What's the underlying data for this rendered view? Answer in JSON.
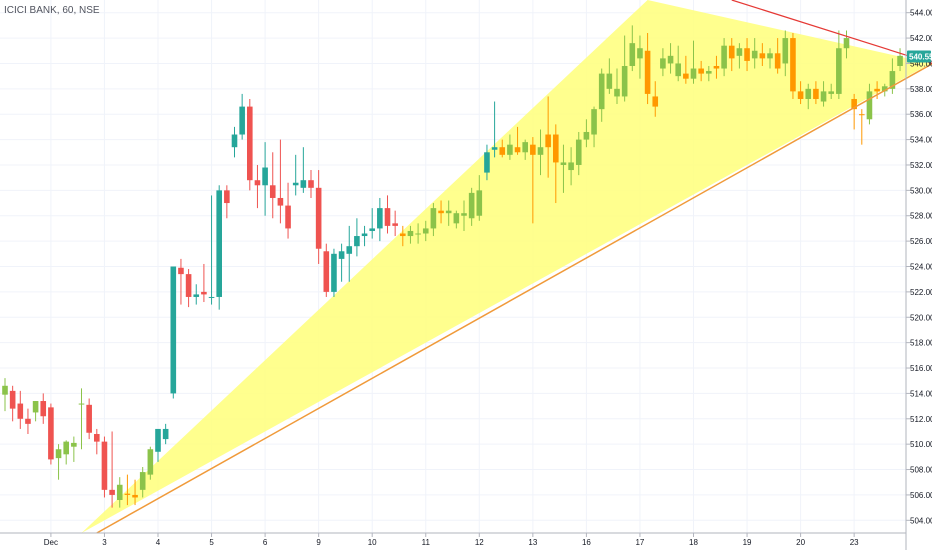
{
  "header": {
    "title": "ICICI BANK, 60, NSE"
  },
  "colors": {
    "up_green": "#8bc34a",
    "up_teal": "#26a69a",
    "down_red": "#ef5350",
    "down_orange": "#ff9800",
    "triangle_fill": "#ffff7a",
    "support_line": "#f09a3a",
    "resistance_line": "#e53935",
    "grid": "#f0f3fa",
    "axis_border": "#b2b5be",
    "price_tag_bg": "#26a69a"
  },
  "chart_data": {
    "type": "candlestick",
    "title": "ICICI BANK, 60, NSE",
    "y_axis": {
      "position": "right",
      "range": [
        503,
        545
      ],
      "ticks": [
        "504.00",
        "506.00",
        "508.00",
        "510.00",
        "512.00",
        "514.00",
        "516.00",
        "518.00",
        "520.00",
        "522.00",
        "524.00",
        "526.00",
        "528.00",
        "530.00",
        "532.00",
        "534.00",
        "536.00",
        "538.00",
        "540.00",
        "542.00",
        "544.00"
      ]
    },
    "x_axis": {
      "ticks": [
        {
          "label": "Dec",
          "bar": 6
        },
        {
          "label": "3",
          "bar": 13
        },
        {
          "label": "4",
          "bar": 20
        },
        {
          "label": "5",
          "bar": 27
        },
        {
          "label": "6",
          "bar": 34
        },
        {
          "label": "9",
          "bar": 41
        },
        {
          "label": "10",
          "bar": 48
        },
        {
          "label": "11",
          "bar": 55
        },
        {
          "label": "12",
          "bar": 62
        },
        {
          "label": "13",
          "bar": 69
        },
        {
          "label": "16",
          "bar": 76
        },
        {
          "label": "17",
          "bar": 83
        },
        {
          "label": "18",
          "bar": 90
        },
        {
          "label": "19",
          "bar": 97
        },
        {
          "label": "20",
          "bar": 104
        },
        {
          "label": "23",
          "bar": 111
        }
      ]
    },
    "last_price": {
      "label": "540.55",
      "value": 540.55
    },
    "grid": true,
    "candles": [
      {
        "o": 513.9,
        "h": 515.2,
        "l": 512.6,
        "c": 514.6,
        "k": "up"
      },
      {
        "o": 514.2,
        "h": 514.6,
        "l": 511.8,
        "c": 512.8,
        "k": "down"
      },
      {
        "o": 513.2,
        "h": 514.2,
        "l": 511.2,
        "c": 512.0,
        "k": "down"
      },
      {
        "o": 512.0,
        "h": 512.8,
        "l": 510.8,
        "c": 511.6,
        "k": "down"
      },
      {
        "o": 512.5,
        "h": 513.4,
        "l": 511.8,
        "c": 513.4,
        "k": "up"
      },
      {
        "o": 513.4,
        "h": 514.0,
        "l": 511.6,
        "c": 512.2,
        "k": "down"
      },
      {
        "o": 512.9,
        "h": 513.2,
        "l": 508.4,
        "c": 508.8,
        "k": "down"
      },
      {
        "o": 508.9,
        "h": 510.0,
        "l": 507.2,
        "c": 509.6,
        "k": "up"
      },
      {
        "o": 509.2,
        "h": 510.3,
        "l": 508.4,
        "c": 510.2,
        "k": "up"
      },
      {
        "o": 509.8,
        "h": 510.6,
        "l": 508.6,
        "c": 510.1,
        "k": "up"
      },
      {
        "o": 513.2,
        "h": 514.4,
        "l": 509.6,
        "c": 513.2,
        "k": "up"
      },
      {
        "o": 513.1,
        "h": 513.6,
        "l": 510.4,
        "c": 510.9,
        "k": "down"
      },
      {
        "o": 510.8,
        "h": 511.2,
        "l": 509.2,
        "c": 510.2,
        "k": "down"
      },
      {
        "o": 510.2,
        "h": 510.6,
        "l": 505.8,
        "c": 506.4,
        "k": "down"
      },
      {
        "o": 506.4,
        "h": 511.0,
        "l": 505.0,
        "c": 506.0,
        "k": "down"
      },
      {
        "o": 505.6,
        "h": 507.4,
        "l": 505.0,
        "c": 506.8,
        "k": "up"
      },
      {
        "o": 506.1,
        "h": 507.6,
        "l": 505.2,
        "c": 506.0,
        "k": "orange"
      },
      {
        "o": 506.0,
        "h": 507.2,
        "l": 505.2,
        "c": 505.8,
        "k": "orange"
      },
      {
        "o": 506.4,
        "h": 508.2,
        "l": 505.8,
        "c": 507.8,
        "k": "up"
      },
      {
        "o": 507.6,
        "h": 509.8,
        "l": 507.2,
        "c": 509.6,
        "k": "up"
      },
      {
        "o": 509.4,
        "h": 511.2,
        "l": 508.6,
        "c": 511.2,
        "k": "up_teal"
      },
      {
        "o": 510.4,
        "h": 511.6,
        "l": 510.0,
        "c": 511.2,
        "k": "up_teal"
      },
      {
        "o": 514.0,
        "h": 524.0,
        "l": 513.6,
        "c": 524.0,
        "k": "up_teal"
      },
      {
        "o": 523.9,
        "h": 524.6,
        "l": 521.0,
        "c": 523.4,
        "k": "down"
      },
      {
        "o": 523.4,
        "h": 523.8,
        "l": 520.8,
        "c": 521.6,
        "k": "down"
      },
      {
        "o": 521.6,
        "h": 522.6,
        "l": 521.0,
        "c": 521.8,
        "k": "up_teal"
      },
      {
        "o": 521.8,
        "h": 524.2,
        "l": 521.2,
        "c": 522.0,
        "k": "down"
      },
      {
        "o": 521.6,
        "h": 529.6,
        "l": 521.0,
        "c": 521.6,
        "k": "up_teal"
      },
      {
        "o": 521.6,
        "h": 530.4,
        "l": 520.6,
        "c": 530.0,
        "k": "up_teal"
      },
      {
        "o": 530.0,
        "h": 530.4,
        "l": 527.8,
        "c": 529.0,
        "k": "down"
      },
      {
        "o": 533.4,
        "h": 535.0,
        "l": 532.6,
        "c": 534.4,
        "k": "up_teal"
      },
      {
        "o": 534.4,
        "h": 537.6,
        "l": 534.0,
        "c": 536.6,
        "k": "up_teal"
      },
      {
        "o": 536.6,
        "h": 537.2,
        "l": 530.0,
        "c": 530.8,
        "k": "down"
      },
      {
        "o": 530.8,
        "h": 532.0,
        "l": 528.6,
        "c": 530.4,
        "k": "down"
      },
      {
        "o": 530.4,
        "h": 533.8,
        "l": 528.0,
        "c": 531.8,
        "k": "up_teal"
      },
      {
        "o": 530.4,
        "h": 533.0,
        "l": 527.8,
        "c": 529.4,
        "k": "down"
      },
      {
        "o": 529.4,
        "h": 534.0,
        "l": 527.4,
        "c": 528.8,
        "k": "down"
      },
      {
        "o": 528.8,
        "h": 530.6,
        "l": 526.2,
        "c": 527.0,
        "k": "down"
      },
      {
        "o": 530.4,
        "h": 532.8,
        "l": 529.6,
        "c": 530.6,
        "k": "up_teal"
      },
      {
        "o": 530.8,
        "h": 533.4,
        "l": 529.8,
        "c": 530.2,
        "k": "up_teal"
      },
      {
        "o": 530.8,
        "h": 531.6,
        "l": 529.4,
        "c": 530.2,
        "k": "down"
      },
      {
        "o": 530.2,
        "h": 531.6,
        "l": 524.2,
        "c": 525.4,
        "k": "down"
      },
      {
        "o": 525.2,
        "h": 525.8,
        "l": 521.6,
        "c": 522.0,
        "k": "down"
      },
      {
        "o": 522.0,
        "h": 525.4,
        "l": 521.6,
        "c": 525.0,
        "k": "up_teal"
      },
      {
        "o": 524.6,
        "h": 525.8,
        "l": 522.8,
        "c": 525.2,
        "k": "up_teal"
      },
      {
        "o": 525.0,
        "h": 527.2,
        "l": 522.8,
        "c": 525.6,
        "k": "up_teal"
      },
      {
        "o": 525.6,
        "h": 527.8,
        "l": 524.8,
        "c": 526.4,
        "k": "up_teal"
      },
      {
        "o": 526.4,
        "h": 527.2,
        "l": 525.6,
        "c": 526.6,
        "k": "up_teal"
      },
      {
        "o": 526.8,
        "h": 528.6,
        "l": 526.2,
        "c": 527.0,
        "k": "up_teal"
      },
      {
        "o": 527.0,
        "h": 529.4,
        "l": 526.0,
        "c": 528.6,
        "k": "up_teal"
      },
      {
        "o": 528.6,
        "h": 529.6,
        "l": 526.6,
        "c": 527.2,
        "k": "down"
      },
      {
        "o": 527.4,
        "h": 528.4,
        "l": 526.4,
        "c": 527.2,
        "k": "down"
      },
      {
        "o": 526.6,
        "h": 527.2,
        "l": 525.6,
        "c": 526.4,
        "k": "orange"
      },
      {
        "o": 526.4,
        "h": 527.2,
        "l": 525.8,
        "c": 526.8,
        "k": "up"
      },
      {
        "o": 526.6,
        "h": 527.4,
        "l": 525.8,
        "c": 526.6,
        "k": "up"
      },
      {
        "o": 526.6,
        "h": 527.6,
        "l": 526.0,
        "c": 527.0,
        "k": "up"
      },
      {
        "o": 527.0,
        "h": 529.0,
        "l": 526.4,
        "c": 528.6,
        "k": "up"
      },
      {
        "o": 528.4,
        "h": 529.2,
        "l": 527.4,
        "c": 528.2,
        "k": "orange"
      },
      {
        "o": 528.2,
        "h": 529.2,
        "l": 527.2,
        "c": 528.4,
        "k": "up"
      },
      {
        "o": 527.4,
        "h": 528.4,
        "l": 527.0,
        "c": 528.2,
        "k": "up"
      },
      {
        "o": 528.2,
        "h": 529.2,
        "l": 526.8,
        "c": 528.0,
        "k": "up"
      },
      {
        "o": 527.8,
        "h": 530.2,
        "l": 527.2,
        "c": 529.8,
        "k": "up"
      },
      {
        "o": 528.0,
        "h": 531.2,
        "l": 527.6,
        "c": 530.0,
        "k": "up"
      },
      {
        "o": 531.4,
        "h": 533.6,
        "l": 530.8,
        "c": 533.0,
        "k": "up_teal"
      },
      {
        "o": 533.2,
        "h": 537.0,
        "l": 532.6,
        "c": 533.4,
        "k": "up_teal"
      },
      {
        "o": 533.4,
        "h": 534.0,
        "l": 532.6,
        "c": 532.8,
        "k": "orange"
      },
      {
        "o": 532.8,
        "h": 534.4,
        "l": 532.4,
        "c": 533.6,
        "k": "up"
      },
      {
        "o": 533.4,
        "h": 535.0,
        "l": 532.8,
        "c": 533.0,
        "k": "orange"
      },
      {
        "o": 533.0,
        "h": 534.0,
        "l": 532.4,
        "c": 533.8,
        "k": "up"
      },
      {
        "o": 533.6,
        "h": 534.2,
        "l": 527.4,
        "c": 532.8,
        "k": "orange"
      },
      {
        "o": 532.8,
        "h": 534.8,
        "l": 531.2,
        "c": 533.4,
        "k": "up"
      },
      {
        "o": 533.4,
        "h": 537.4,
        "l": 531.0,
        "c": 534.4,
        "k": "orange"
      },
      {
        "o": 534.4,
        "h": 535.2,
        "l": 529.0,
        "c": 532.2,
        "k": "orange"
      },
      {
        "o": 532.2,
        "h": 533.6,
        "l": 529.8,
        "c": 532.0,
        "k": "up"
      },
      {
        "o": 531.6,
        "h": 533.4,
        "l": 530.4,
        "c": 532.2,
        "k": "up"
      },
      {
        "o": 532.0,
        "h": 534.6,
        "l": 531.2,
        "c": 534.0,
        "k": "up"
      },
      {
        "o": 534.0,
        "h": 535.6,
        "l": 533.4,
        "c": 534.6,
        "k": "up"
      },
      {
        "o": 534.4,
        "h": 536.6,
        "l": 533.4,
        "c": 536.4,
        "k": "up"
      },
      {
        "o": 536.4,
        "h": 539.6,
        "l": 535.4,
        "c": 539.2,
        "k": "up"
      },
      {
        "o": 539.2,
        "h": 540.4,
        "l": 537.6,
        "c": 538.0,
        "k": "up"
      },
      {
        "o": 538.0,
        "h": 539.6,
        "l": 536.8,
        "c": 537.4,
        "k": "up"
      },
      {
        "o": 537.4,
        "h": 542.2,
        "l": 537.0,
        "c": 539.8,
        "k": "up"
      },
      {
        "o": 539.8,
        "h": 543.0,
        "l": 539.4,
        "c": 541.6,
        "k": "up"
      },
      {
        "o": 541.2,
        "h": 542.2,
        "l": 538.8,
        "c": 540.4,
        "k": "up"
      },
      {
        "o": 541.0,
        "h": 542.4,
        "l": 536.8,
        "c": 537.6,
        "k": "orange"
      },
      {
        "o": 537.4,
        "h": 538.6,
        "l": 535.8,
        "c": 536.6,
        "k": "orange"
      },
      {
        "o": 539.6,
        "h": 541.2,
        "l": 539.0,
        "c": 540.4,
        "k": "up"
      },
      {
        "o": 540.6,
        "h": 541.6,
        "l": 539.2,
        "c": 540.0,
        "k": "up"
      },
      {
        "o": 540.0,
        "h": 541.4,
        "l": 538.6,
        "c": 539.0,
        "k": "up"
      },
      {
        "o": 539.2,
        "h": 540.6,
        "l": 538.4,
        "c": 538.8,
        "k": "orange"
      },
      {
        "o": 538.8,
        "h": 541.8,
        "l": 538.4,
        "c": 539.6,
        "k": "up"
      },
      {
        "o": 539.6,
        "h": 540.2,
        "l": 538.6,
        "c": 539.2,
        "k": "orange"
      },
      {
        "o": 539.4,
        "h": 539.8,
        "l": 538.6,
        "c": 539.2,
        "k": "up"
      },
      {
        "o": 539.8,
        "h": 540.6,
        "l": 538.8,
        "c": 539.6,
        "k": "orange"
      },
      {
        "o": 539.6,
        "h": 542.0,
        "l": 539.0,
        "c": 541.4,
        "k": "up"
      },
      {
        "o": 541.4,
        "h": 542.0,
        "l": 539.4,
        "c": 540.4,
        "k": "orange"
      },
      {
        "o": 540.6,
        "h": 541.6,
        "l": 539.6,
        "c": 541.2,
        "k": "up"
      },
      {
        "o": 541.2,
        "h": 542.0,
        "l": 539.4,
        "c": 540.2,
        "k": "orange"
      },
      {
        "o": 540.4,
        "h": 542.0,
        "l": 539.6,
        "c": 541.0,
        "k": "up"
      },
      {
        "o": 540.8,
        "h": 541.6,
        "l": 539.8,
        "c": 540.4,
        "k": "orange"
      },
      {
        "o": 540.4,
        "h": 541.2,
        "l": 539.6,
        "c": 540.8,
        "k": "up"
      },
      {
        "o": 540.8,
        "h": 542.0,
        "l": 539.2,
        "c": 539.6,
        "k": "orange"
      },
      {
        "o": 540.0,
        "h": 542.6,
        "l": 539.0,
        "c": 542.0,
        "k": "up"
      },
      {
        "o": 542.0,
        "h": 542.4,
        "l": 537.2,
        "c": 537.8,
        "k": "orange"
      },
      {
        "o": 537.8,
        "h": 538.6,
        "l": 536.8,
        "c": 537.2,
        "k": "orange"
      },
      {
        "o": 537.2,
        "h": 538.4,
        "l": 536.4,
        "c": 538.0,
        "k": "up"
      },
      {
        "o": 538.0,
        "h": 538.6,
        "l": 536.8,
        "c": 537.2,
        "k": "orange"
      },
      {
        "o": 537.0,
        "h": 538.6,
        "l": 536.6,
        "c": 537.8,
        "k": "up"
      },
      {
        "o": 537.8,
        "h": 538.4,
        "l": 537.2,
        "c": 537.6,
        "k": "up"
      },
      {
        "o": 537.6,
        "h": 542.6,
        "l": 537.2,
        "c": 541.2,
        "k": "up"
      },
      {
        "o": 541.2,
        "h": 542.6,
        "l": 540.4,
        "c": 542.0,
        "k": "up"
      },
      {
        "o": 537.2,
        "h": 537.6,
        "l": 534.8,
        "c": 536.4,
        "k": "orange"
      },
      {
        "o": 536.0,
        "h": 536.4,
        "l": 533.6,
        "c": 536.0,
        "k": "orange"
      },
      {
        "o": 535.6,
        "h": 538.4,
        "l": 535.2,
        "c": 537.8,
        "k": "up"
      },
      {
        "o": 537.8,
        "h": 538.6,
        "l": 537.2,
        "c": 538.0,
        "k": "orange"
      },
      {
        "o": 537.8,
        "h": 538.4,
        "l": 537.4,
        "c": 538.2,
        "k": "up"
      },
      {
        "o": 538.0,
        "h": 540.4,
        "l": 537.6,
        "c": 539.4,
        "k": "up"
      },
      {
        "o": 539.8,
        "h": 541.2,
        "l": 539.4,
        "c": 540.6,
        "k": "up"
      }
    ],
    "drawings": {
      "triangle": {
        "p1": {
          "bar": 10,
          "price": 503.0
        },
        "p2": {
          "bar": 84,
          "price": 545.0
        },
        "p3": {
          "bar": 121,
          "price": 540.0
        }
      },
      "support_line": {
        "p1": {
          "bar": 12,
          "price": 503.0
        },
        "p2": {
          "bar": 126,
          "price": 541.6
        }
      },
      "resistance_line": {
        "p1": {
          "bar": 95,
          "price": 545.0
        },
        "p2": {
          "bar": 127,
          "price": 538.9
        }
      }
    }
  }
}
